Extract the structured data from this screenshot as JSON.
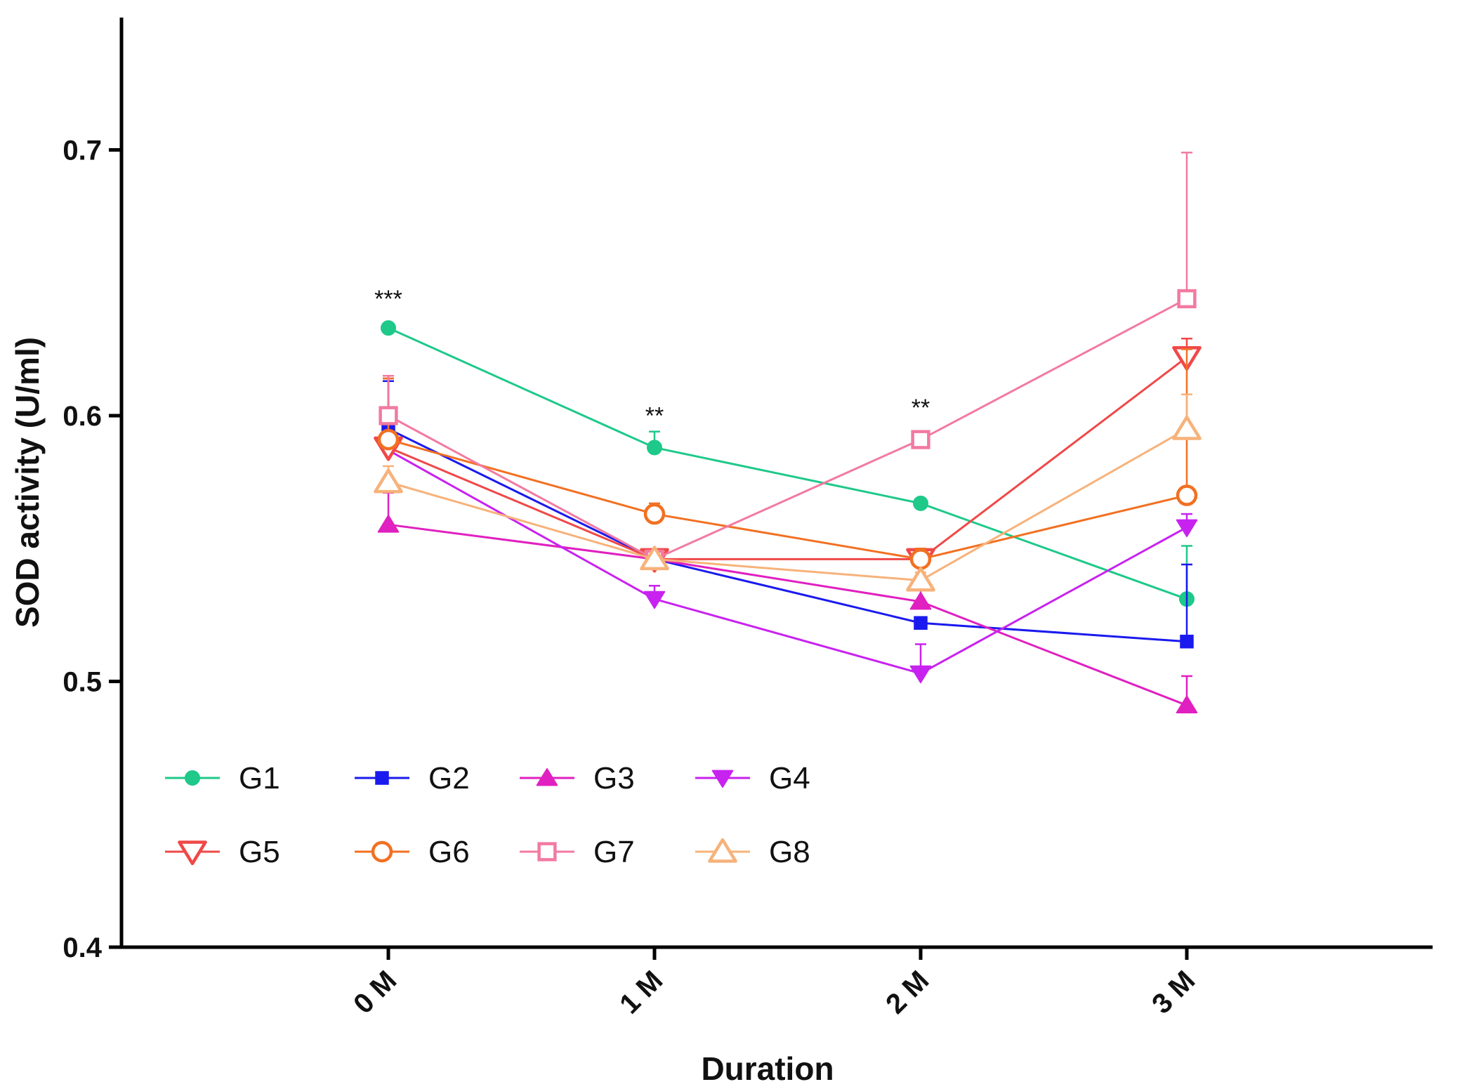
{
  "chart_data": {
    "type": "line",
    "title": "",
    "xlabel": "Duration",
    "ylabel": "SOD activity (U/ml)",
    "categories": [
      "0 M",
      "1 M",
      "2 M",
      "3 M"
    ],
    "ylim": [
      0.4,
      0.75
    ],
    "yticks": [
      "0.4",
      "0.5",
      "0.6",
      "0.7"
    ],
    "legend_position": "bottom-left",
    "series": [
      {
        "name": "G1",
        "color": "#1ec98a",
        "marker": "circle",
        "filled": true,
        "values": [
          0.633,
          0.588,
          0.567,
          0.531
        ],
        "errors": [
          0,
          0.006,
          0,
          0.02
        ]
      },
      {
        "name": "G2",
        "color": "#1a1aee",
        "marker": "square",
        "filled": true,
        "values": [
          0.595,
          0.546,
          0.522,
          0.515
        ],
        "errors": [
          0.018,
          0,
          0,
          0.029
        ]
      },
      {
        "name": "G3",
        "color": "#e020c0",
        "marker": "triangle-up",
        "filled": true,
        "values": [
          0.559,
          0.546,
          0.53,
          0.491
        ],
        "errors": [
          0.012,
          0,
          0.006,
          0.011
        ]
      },
      {
        "name": "G4",
        "color": "#c822f0",
        "marker": "triangle-down",
        "filled": true,
        "values": [
          0.587,
          0.531,
          0.503,
          0.558
        ],
        "errors": [
          0.005,
          0.005,
          0.011,
          0.005
        ]
      },
      {
        "name": "G5",
        "color": "#f04848",
        "marker": "triangle-down",
        "filled": false,
        "values": [
          0.588,
          0.546,
          0.546,
          0.622
        ],
        "errors": [
          0.026,
          0,
          0.004,
          0.007
        ]
      },
      {
        "name": "G6",
        "color": "#f27022",
        "marker": "circle",
        "filled": false,
        "values": [
          0.591,
          0.563,
          0.546,
          0.57
        ],
        "errors": [
          0.023,
          0.004,
          0.004,
          0.055
        ]
      },
      {
        "name": "G7",
        "color": "#f27aa0",
        "marker": "square",
        "filled": false,
        "values": [
          0.6,
          0.546,
          0.591,
          0.644
        ],
        "errors": [
          0.015,
          0,
          0,
          0.055
        ]
      },
      {
        "name": "G8",
        "color": "#f7b27a",
        "marker": "triangle-up",
        "filled": false,
        "values": [
          0.575,
          0.546,
          0.538,
          0.595
        ],
        "errors": [
          0.006,
          0,
          0.003,
          0.013
        ]
      }
    ],
    "annotations": [
      {
        "category": "0 M",
        "text": "***",
        "y": 0.641
      },
      {
        "category": "1 M",
        "text": "**",
        "y": 0.597
      },
      {
        "category": "2 M",
        "text": "**",
        "y": 0.6
      }
    ]
  }
}
